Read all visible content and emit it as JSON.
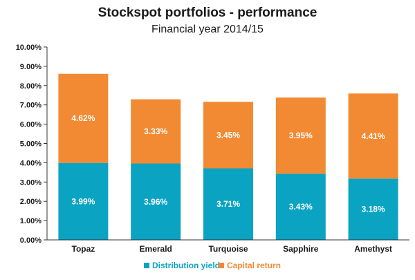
{
  "chart_data": {
    "type": "bar",
    "stacked": true,
    "title": "Stockspot portfolios - performance",
    "subtitle": "Financial year 2014/15",
    "categories": [
      "Topaz",
      "Emerald",
      "Turquoise",
      "Sapphire",
      "Amethyst"
    ],
    "series": [
      {
        "name": "Distribution yield",
        "color": "#0aa3c2",
        "values": [
          3.99,
          3.96,
          3.71,
          3.43,
          3.18
        ],
        "labels": [
          "3.99%",
          "3.96%",
          "3.71%",
          "3.43%",
          "3.18%"
        ]
      },
      {
        "name": "Capital return",
        "color": "#f28a33",
        "values": [
          4.62,
          3.33,
          3.45,
          3.95,
          4.41
        ],
        "labels": [
          "4.62%",
          "3.33%",
          "3.45%",
          "3.95%",
          "4.41%"
        ]
      }
    ],
    "ylim": [
      0,
      10
    ],
    "yticks": [
      0,
      1,
      2,
      3,
      4,
      5,
      6,
      7,
      8,
      9,
      10
    ],
    "ytick_labels": [
      "0.00%",
      "1.00%",
      "2.00%",
      "3.00%",
      "4.00%",
      "5.00%",
      "6.00%",
      "7.00%",
      "8.00%",
      "9.00%",
      "10.00%"
    ],
    "xlabel": "",
    "ylabel": "",
    "grid": false,
    "legend": "bottom"
  }
}
